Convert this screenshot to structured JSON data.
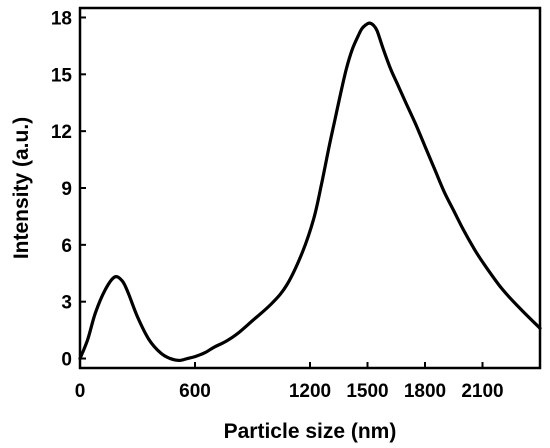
{
  "chart_data": {
    "type": "line",
    "title": "",
    "xlabel": "Particle size (nm)",
    "ylabel": "Intensity (a.u.)",
    "xlim": [
      0,
      2400
    ],
    "ylim": [
      -0.5,
      18.5
    ],
    "xticks": [
      0,
      600,
      1200,
      1500,
      1800,
      2100
    ],
    "xtick_labels": [
      "0",
      "600",
      "1200",
      "1500",
      "1800",
      "2100"
    ],
    "yticks": [
      0,
      3,
      6,
      9,
      12,
      15,
      18
    ],
    "ytick_labels": [
      "0",
      "3",
      "6",
      "9",
      "12",
      "15",
      "18"
    ],
    "grid": false,
    "line_color": "#000000",
    "series": [
      {
        "x": [
          0,
          40,
          80,
          130,
          180,
          220,
          250,
          300,
          360,
          420,
          470,
          520,
          560,
          600,
          650,
          700,
          760,
          820,
          900,
          1000,
          1080,
          1160,
          1220,
          1260,
          1300,
          1330,
          1360,
          1390,
          1420,
          1450,
          1470,
          1490,
          1510,
          1530,
          1550,
          1580,
          1620,
          1660,
          1700,
          1750,
          1800,
          1850,
          1900,
          1950,
          2000,
          2050,
          2100,
          2200,
          2300,
          2400
        ],
        "y": [
          0,
          1.0,
          2.4,
          3.6,
          4.3,
          4.1,
          3.5,
          2.2,
          1.0,
          0.3,
          0.0,
          -0.1,
          0.0,
          0.1,
          0.3,
          0.6,
          0.9,
          1.3,
          2.0,
          2.9,
          3.9,
          5.6,
          7.4,
          9.2,
          11.2,
          12.6,
          14.0,
          15.3,
          16.3,
          17.0,
          17.4,
          17.6,
          17.7,
          17.6,
          17.3,
          16.4,
          15.3,
          14.4,
          13.5,
          12.4,
          11.2,
          10.0,
          8.8,
          7.8,
          6.8,
          5.9,
          5.1,
          3.7,
          2.6,
          1.6
        ]
      }
    ]
  }
}
